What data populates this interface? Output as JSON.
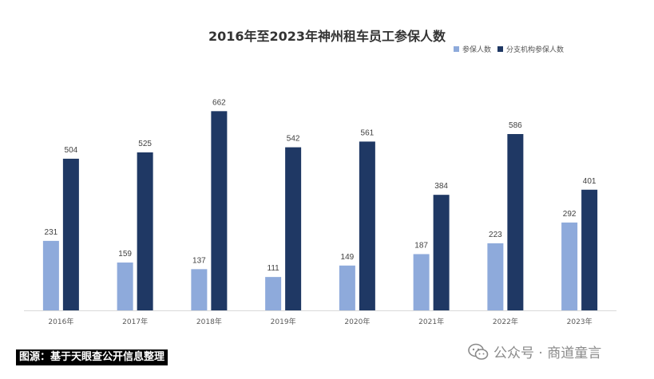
{
  "chart_data": {
    "type": "bar",
    "title": "2016年至2023年神州租车员工参保人数",
    "categories": [
      "2016年",
      "2017年",
      "2018年",
      "2019年",
      "2020年",
      "2021年",
      "2022年",
      "2023年"
    ],
    "series": [
      {
        "name": "参保人数",
        "color": "#8eaadb",
        "values": [
          231,
          159,
          137,
          111,
          149,
          187,
          223,
          292
        ]
      },
      {
        "name": "分支机构参保人数",
        "color": "#1f3864",
        "values": [
          504,
          525,
          662,
          542,
          561,
          384,
          586,
          401
        ]
      }
    ],
    "ylim": [
      0,
      700
    ],
    "grid": false,
    "legend_position": "top-right",
    "xlabel": "",
    "ylabel": ""
  },
  "footer": {
    "source": "图源：基于天眼查公开信息整理",
    "watermark": "公众号 · 商道童言",
    "watermark_icon": "wechat-icon"
  }
}
